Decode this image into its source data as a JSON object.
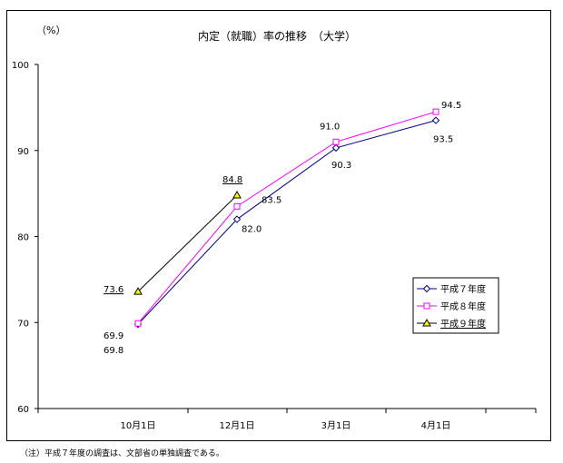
{
  "chart_data": {
    "type": "line",
    "title": "内定（就職）率の推移　（大学）",
    "ylabel": "（%）",
    "xlabel": "",
    "categories": [
      "10月1日",
      "12月1日",
      "3月1日",
      "4月1日"
    ],
    "ylim": [
      60,
      100
    ],
    "yticks": [
      60,
      70,
      80,
      90,
      100
    ],
    "grid": false,
    "legend_position": "right",
    "series": [
      {
        "name": "平成７年度",
        "values": [
          69.8,
          82.0,
          90.3,
          93.5
        ],
        "labels": [
          "69.8",
          "82.0",
          "90.3",
          "93.5"
        ],
        "color": "#000080",
        "marker": "diamond"
      },
      {
        "name": "平成８年度",
        "values": [
          69.9,
          83.5,
          91.0,
          94.5
        ],
        "labels": [
          "69.9",
          "83.5",
          "91.0",
          "94.5"
        ],
        "color": "#FF00FF",
        "marker": "square"
      },
      {
        "name": "平成９年度",
        "values": [
          73.6,
          84.8,
          null,
          null
        ],
        "labels": [
          "73.6",
          "84.8",
          null,
          null
        ],
        "color": "#000000",
        "marker": "triangle",
        "marker_fill": "#FFFF00"
      }
    ]
  },
  "footnote": "（注）平成７年度の調査は、文部省の単独調査である。"
}
